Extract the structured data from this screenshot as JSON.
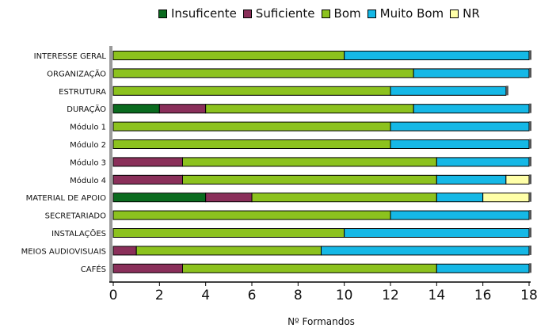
{
  "chart_data": {
    "type": "bar",
    "orientation": "horizontal",
    "stacked": true,
    "categories": [
      "INTERESSE GERAL",
      "ORGANIZAÇÃO",
      "ESTRUTURA",
      "DURAÇÃO",
      "Módulo 1",
      "Módulo 2",
      "Módulo 3",
      "Módulo 4",
      "MATERIAL DE APOIO",
      "SECRETARIADO",
      "INSTALAÇÕES",
      "MEIOS AUDIOVISUAIS",
      "CAFÉS"
    ],
    "series": [
      {
        "name": "Insuficente",
        "color": "#0a6b1f",
        "values": [
          0,
          0,
          0,
          2,
          0,
          0,
          0,
          0,
          4,
          0,
          0,
          0,
          0
        ]
      },
      {
        "name": "Suficiente",
        "color": "#8a2f5a",
        "values": [
          0,
          0,
          0,
          2,
          0,
          0,
          3,
          3,
          2,
          0,
          0,
          1,
          3
        ]
      },
      {
        "name": "Bom",
        "color": "#8cc21e",
        "values": [
          10,
          13,
          12,
          9,
          12,
          12,
          11,
          11,
          8,
          12,
          10,
          8,
          11
        ]
      },
      {
        "name": "Muito Bom",
        "color": "#15b8e6",
        "values": [
          8,
          5,
          5,
          5,
          6,
          6,
          4,
          3,
          2,
          6,
          8,
          9,
          4
        ]
      },
      {
        "name": "NR",
        "color": "#ffffa8",
        "values": [
          0,
          0,
          0,
          0,
          0,
          0,
          0,
          1,
          2,
          0,
          0,
          0,
          0
        ]
      }
    ],
    "xlabel": "Nº Formandos",
    "ylabel": "",
    "xlim": [
      0,
      18
    ],
    "xticks": [
      "0",
      "2",
      "4",
      "6",
      "8",
      "10",
      "12",
      "14",
      "16",
      "18"
    ],
    "grid": false,
    "legend": "top"
  }
}
